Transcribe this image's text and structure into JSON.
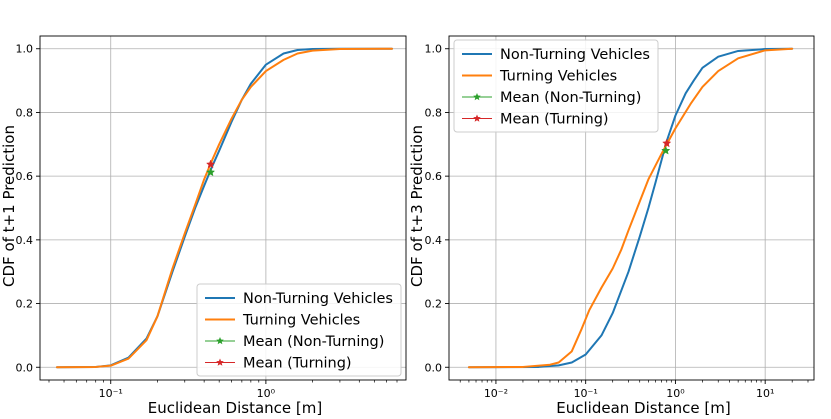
{
  "chart_data": [
    {
      "type": "line",
      "xscale": "log",
      "xlim": [
        0.035,
        8
      ],
      "ylim": [
        -0.04,
        1.04
      ],
      "xlabel": "Euclidean Distance [m]",
      "ylabel": "CDF of t+1 Prediction",
      "grid": true,
      "legend_location": "lower-right",
      "xticks": [
        {
          "value": 0.1,
          "label": "10⁻¹"
        },
        {
          "value": 1,
          "label": "10⁰"
        }
      ],
      "yticks": [
        {
          "value": 0.0,
          "label": "0.0"
        },
        {
          "value": 0.2,
          "label": "0.2"
        },
        {
          "value": 0.4,
          "label": "0.4"
        },
        {
          "value": 0.6,
          "label": "0.6"
        },
        {
          "value": 0.8,
          "label": "0.8"
        },
        {
          "value": 1.0,
          "label": "1.0"
        }
      ],
      "series": [
        {
          "name": "Non-Turning Vehicles",
          "color": "#1f77b4",
          "points": [
            [
              0.045,
              0
            ],
            [
              0.08,
              0.001
            ],
            [
              0.1,
              0.006
            ],
            [
              0.13,
              0.03
            ],
            [
              0.17,
              0.09
            ],
            [
              0.2,
              0.16
            ],
            [
              0.25,
              0.3
            ],
            [
              0.3,
              0.41
            ],
            [
              0.35,
              0.5
            ],
            [
              0.4,
              0.57
            ],
            [
              0.45,
              0.63
            ],
            [
              0.5,
              0.68
            ],
            [
              0.6,
              0.77
            ],
            [
              0.7,
              0.84
            ],
            [
              0.8,
              0.89
            ],
            [
              1.0,
              0.95
            ],
            [
              1.3,
              0.985
            ],
            [
              1.6,
              0.996
            ],
            [
              2.0,
              0.999
            ],
            [
              3.0,
              1.0
            ],
            [
              6.5,
              1.0
            ]
          ]
        },
        {
          "name": "Turning Vehicles",
          "color": "#ff7f0e",
          "points": [
            [
              0.045,
              0
            ],
            [
              0.08,
              0.001
            ],
            [
              0.1,
              0.005
            ],
            [
              0.13,
              0.027
            ],
            [
              0.17,
              0.085
            ],
            [
              0.2,
              0.16
            ],
            [
              0.25,
              0.31
            ],
            [
              0.3,
              0.42
            ],
            [
              0.35,
              0.51
            ],
            [
              0.4,
              0.59
            ],
            [
              0.45,
              0.65
            ],
            [
              0.5,
              0.7
            ],
            [
              0.6,
              0.78
            ],
            [
              0.7,
              0.84
            ],
            [
              0.8,
              0.88
            ],
            [
              1.0,
              0.93
            ],
            [
              1.3,
              0.965
            ],
            [
              1.6,
              0.985
            ],
            [
              2.0,
              0.994
            ],
            [
              3.0,
              0.999
            ],
            [
              6.5,
              1.0
            ]
          ]
        }
      ],
      "means": [
        {
          "name": "Mean (Non-Turning)",
          "color": "#2ca02c",
          "x": 0.44,
          "y": 0.612
        },
        {
          "name": "Mean (Turning)",
          "color": "#d62728",
          "x": 0.44,
          "y": 0.637
        }
      ]
    },
    {
      "type": "line",
      "xscale": "log",
      "xlim": [
        0.003,
        35
      ],
      "ylim": [
        -0.04,
        1.04
      ],
      "xlabel": "Euclidean Distance [m]",
      "ylabel": "CDF of t+3 Prediction",
      "grid": true,
      "legend_location": "upper-left",
      "xticks": [
        {
          "value": 0.01,
          "label": "10⁻²"
        },
        {
          "value": 0.1,
          "label": "10⁻¹"
        },
        {
          "value": 1,
          "label": "10⁰"
        },
        {
          "value": 10,
          "label": "10¹"
        }
      ],
      "yticks": [
        {
          "value": 0.0,
          "label": "0.0"
        },
        {
          "value": 0.2,
          "label": "0.2"
        },
        {
          "value": 0.4,
          "label": "0.4"
        },
        {
          "value": 0.6,
          "label": "0.6"
        },
        {
          "value": 0.8,
          "label": "0.8"
        },
        {
          "value": 1.0,
          "label": "1.0"
        }
      ],
      "series": [
        {
          "name": "Non-Turning Vehicles",
          "color": "#1f77b4",
          "points": [
            [
              0.005,
              0
            ],
            [
              0.03,
              0.001
            ],
            [
              0.05,
              0.006
            ],
            [
              0.07,
              0.015
            ],
            [
              0.1,
              0.04
            ],
            [
              0.15,
              0.1
            ],
            [
              0.2,
              0.17
            ],
            [
              0.3,
              0.3
            ],
            [
              0.4,
              0.41
            ],
            [
              0.5,
              0.5
            ],
            [
              0.6,
              0.58
            ],
            [
              0.7,
              0.65
            ],
            [
              0.8,
              0.71
            ],
            [
              1.0,
              0.79
            ],
            [
              1.3,
              0.86
            ],
            [
              1.6,
              0.9
            ],
            [
              2.0,
              0.94
            ],
            [
              3.0,
              0.975
            ],
            [
              5.0,
              0.993
            ],
            [
              10.0,
              0.999
            ],
            [
              20.0,
              1.0
            ]
          ]
        },
        {
          "name": "Turning Vehicles",
          "color": "#ff7f0e",
          "points": [
            [
              0.005,
              0
            ],
            [
              0.02,
              0.001
            ],
            [
              0.04,
              0.008
            ],
            [
              0.05,
              0.015
            ],
            [
              0.07,
              0.05
            ],
            [
              0.09,
              0.12
            ],
            [
              0.11,
              0.18
            ],
            [
              0.15,
              0.25
            ],
            [
              0.2,
              0.31
            ],
            [
              0.25,
              0.37
            ],
            [
              0.3,
              0.43
            ],
            [
              0.4,
              0.52
            ],
            [
              0.5,
              0.59
            ],
            [
              0.7,
              0.67
            ],
            [
              1.0,
              0.75
            ],
            [
              1.5,
              0.83
            ],
            [
              2.0,
              0.88
            ],
            [
              3.0,
              0.93
            ],
            [
              5.0,
              0.97
            ],
            [
              10.0,
              0.995
            ],
            [
              20.0,
              1.0
            ]
          ]
        }
      ],
      "means": [
        {
          "name": "Mean (Non-Turning)",
          "color": "#2ca02c",
          "x": 0.78,
          "y": 0.68
        },
        {
          "name": "Mean (Turning)",
          "color": "#d62728",
          "x": 0.8,
          "y": 0.703
        }
      ]
    }
  ]
}
